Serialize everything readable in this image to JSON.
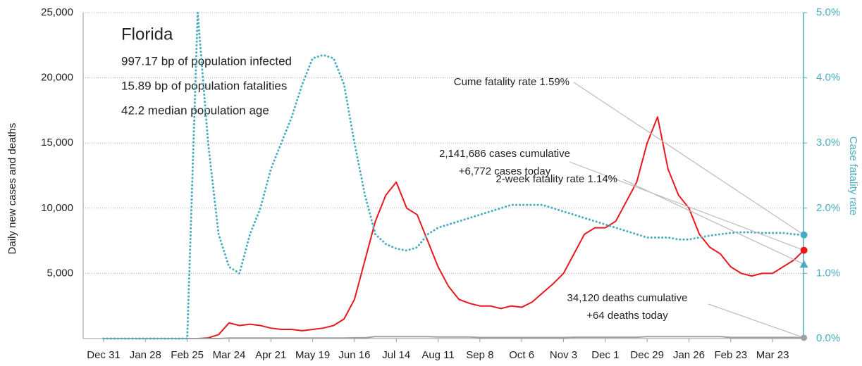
{
  "chart_data": {
    "type": "line",
    "title": "Florida",
    "subtitle_lines": [
      "997.17 bp of population infected",
      "15.89 bp of population fatalities",
      "42.2 median population age"
    ],
    "y_label": "Daily new cases and deaths",
    "y2_label": "Case fatality rate",
    "categories": [
      "Dec 31",
      null,
      null,
      null,
      "Jan 28",
      null,
      null,
      null,
      "Feb 25",
      null,
      null,
      null,
      "Mar 24",
      null,
      null,
      null,
      "Apr 21",
      null,
      null,
      null,
      "May 19",
      null,
      null,
      null,
      "Jun 16",
      null,
      null,
      null,
      "Jul 14",
      null,
      null,
      null,
      "Aug 11",
      null,
      null,
      null,
      "Sep 8",
      null,
      null,
      null,
      "Oct 6",
      null,
      null,
      null,
      "Nov 3",
      null,
      null,
      null,
      "Dec 1",
      null,
      null,
      null,
      "Dec 29",
      null,
      null,
      null,
      "Jan 26",
      null,
      null,
      null,
      "Feb 23",
      null,
      null,
      null,
      "Mar 23",
      null,
      null,
      null
    ],
    "series": [
      {
        "color": "#e8191c",
        "style": "solid",
        "values": [
          0,
          0,
          0,
          0,
          0,
          0,
          0,
          0,
          0,
          0,
          50,
          300,
          1200,
          1000,
          1100,
          1000,
          800,
          700,
          700,
          600,
          700,
          800,
          1000,
          1500,
          3000,
          6000,
          9000,
          11000,
          12000,
          10000,
          9500,
          7500,
          5500,
          4000,
          3000,
          2700,
          2500,
          2500,
          2300,
          2500,
          2400,
          2800,
          3500,
          4200,
          5000,
          6500,
          8000,
          8500,
          8500,
          9000,
          10500,
          12000,
          15000,
          17000,
          13000,
          11000,
          10000,
          8000,
          7000,
          6500,
          5500,
          5000,
          4800,
          5000,
          5000,
          5500,
          6000,
          6772
        ]
      },
      {
        "color": "#a0a0a0",
        "style": "solid",
        "values": [
          0,
          0,
          0,
          0,
          0,
          0,
          0,
          0,
          0,
          0,
          0,
          0,
          40,
          40,
          40,
          40,
          40,
          40,
          40,
          40,
          40,
          40,
          40,
          40,
          60,
          60,
          150,
          150,
          150,
          150,
          150,
          150,
          120,
          120,
          120,
          120,
          80,
          80,
          80,
          80,
          80,
          80,
          80,
          80,
          80,
          100,
          100,
          100,
          100,
          100,
          100,
          100,
          150,
          150,
          150,
          150,
          150,
          150,
          150,
          150,
          90,
          90,
          90,
          90,
          90,
          90,
          90,
          64
        ]
      },
      {
        "color": "#4aacc0",
        "style": "dotted",
        "axis": "y2",
        "values": [
          0,
          0,
          0,
          0,
          0,
          0,
          0,
          0,
          0,
          5,
          3.0,
          1.6,
          1.1,
          1.0,
          1.6,
          2.0,
          2.6,
          3.0,
          3.4,
          3.9,
          4.3,
          4.35,
          4.3,
          3.9,
          3.0,
          2.2,
          1.6,
          1.45,
          1.38,
          1.35,
          1.4,
          1.6,
          1.7,
          1.75,
          1.8,
          1.85,
          1.9,
          1.95,
          2.0,
          2.05,
          2.05,
          2.05,
          2.05,
          2.0,
          1.95,
          1.9,
          1.85,
          1.8,
          1.75,
          1.7,
          1.65,
          1.6,
          1.55,
          1.55,
          1.55,
          1.52,
          1.52,
          1.55,
          1.58,
          1.6,
          1.62,
          1.63,
          1.63,
          1.62,
          1.62,
          1.62,
          1.6,
          1.59
        ]
      }
    ],
    "two_week_rate": 1.14,
    "annotations": [
      {
        "lines": [
          "Cume fatality rate 1.59%"
        ],
        "target": "chart_data.series.2.values.67"
      },
      {
        "lines": [
          "2,141,686 cases cumulative",
          "+6,772 cases today"
        ],
        "target": "chart_data.series.0.values.67"
      },
      {
        "lines": [
          "2-week fatality rate 1.14%"
        ],
        "target": "chart_data.two_week_rate"
      },
      {
        "lines": [
          "34,120 deaths cumulative",
          "+64 deaths today"
        ],
        "target": "chart_data.series.1.values.67"
      }
    ],
    "ylim": [
      0,
      25000
    ],
    "yticks": [
      {
        "value": 5000,
        "label": "5,000"
      },
      {
        "value": 10000,
        "label": "10,000"
      },
      {
        "value": 15000,
        "label": "15,000"
      },
      {
        "value": 20000,
        "label": "20,000"
      },
      {
        "value": 25000,
        "label": "25,000"
      }
    ],
    "y2lim": [
      0,
      5
    ],
    "y2ticks": [
      {
        "value": 0,
        "label": "0.0%"
      },
      {
        "value": 1,
        "label": "1.0%"
      },
      {
        "value": 2,
        "label": "2.0%"
      },
      {
        "value": 3,
        "label": "3.0%"
      },
      {
        "value": 4,
        "label": "4.0%"
      },
      {
        "value": 5,
        "label": "5.0%"
      }
    ],
    "grid": true
  }
}
